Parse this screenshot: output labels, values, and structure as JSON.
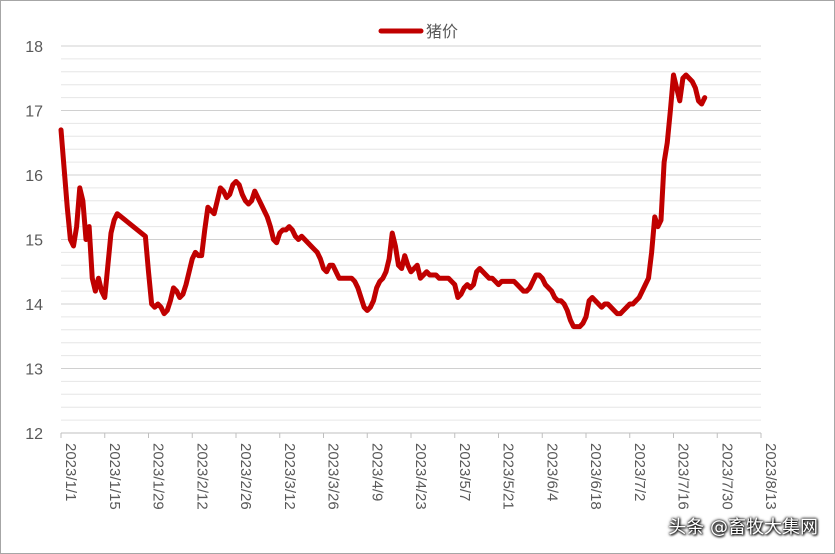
{
  "chart_data": {
    "type": "line",
    "title": "",
    "xlabel": "",
    "ylabel": "",
    "ylim": [
      12,
      18
    ],
    "yticks": [
      12,
      13,
      14,
      15,
      16,
      17,
      18
    ],
    "grid": "horizontal",
    "legend": {
      "position": "top-center",
      "entries": [
        "猪价"
      ]
    },
    "x_tick_labels": [
      "2023/1/1",
      "2023/1/15",
      "2023/1/29",
      "2023/2/12",
      "2023/2/26",
      "2023/3/12",
      "2023/3/26",
      "2023/4/9",
      "2023/4/23",
      "2023/5/7",
      "2023/5/21",
      "2023/6/4",
      "2023/6/18",
      "2023/7/2",
      "2023/7/16",
      "2023/7/30",
      "2023/8/13"
    ],
    "series": [
      {
        "name": "猪价",
        "color": "#c00000",
        "points": [
          [
            "2023-01-01",
            16.7
          ],
          [
            "2023-01-02",
            16.1
          ],
          [
            "2023-01-03",
            15.5
          ],
          [
            "2023-01-04",
            15.0
          ],
          [
            "2023-01-05",
            14.9
          ],
          [
            "2023-01-06",
            15.2
          ],
          [
            "2023-01-07",
            15.8
          ],
          [
            "2023-01-08",
            15.6
          ],
          [
            "2023-01-09",
            15.0
          ],
          [
            "2023-01-10",
            15.2
          ],
          [
            "2023-01-11",
            14.4
          ],
          [
            "2023-01-12",
            14.2
          ],
          [
            "2023-01-13",
            14.4
          ],
          [
            "2023-01-14",
            14.2
          ],
          [
            "2023-01-15",
            14.1
          ],
          [
            "2023-01-16",
            14.6
          ],
          [
            "2023-01-17",
            15.1
          ],
          [
            "2023-01-18",
            15.3
          ],
          [
            "2023-01-19",
            15.4
          ],
          [
            "2023-01-28",
            15.05
          ],
          [
            "2023-01-29",
            14.5
          ],
          [
            "2023-01-30",
            14.0
          ],
          [
            "2023-01-31",
            13.95
          ],
          [
            "2023-02-01",
            14.0
          ],
          [
            "2023-02-02",
            13.95
          ],
          [
            "2023-02-03",
            13.85
          ],
          [
            "2023-02-04",
            13.9
          ],
          [
            "2023-02-05",
            14.05
          ],
          [
            "2023-02-06",
            14.25
          ],
          [
            "2023-02-07",
            14.2
          ],
          [
            "2023-02-08",
            14.1
          ],
          [
            "2023-02-09",
            14.15
          ],
          [
            "2023-02-10",
            14.3
          ],
          [
            "2023-02-11",
            14.5
          ],
          [
            "2023-02-12",
            14.7
          ],
          [
            "2023-02-13",
            14.8
          ],
          [
            "2023-02-14",
            14.75
          ],
          [
            "2023-02-15",
            14.75
          ],
          [
            "2023-02-16",
            15.15
          ],
          [
            "2023-02-17",
            15.5
          ],
          [
            "2023-02-18",
            15.45
          ],
          [
            "2023-02-19",
            15.4
          ],
          [
            "2023-02-20",
            15.6
          ],
          [
            "2023-02-21",
            15.8
          ],
          [
            "2023-02-22",
            15.75
          ],
          [
            "2023-02-23",
            15.65
          ],
          [
            "2023-02-24",
            15.7
          ],
          [
            "2023-02-25",
            15.85
          ],
          [
            "2023-02-26",
            15.9
          ],
          [
            "2023-02-27",
            15.85
          ],
          [
            "2023-02-28",
            15.7
          ],
          [
            "2023-03-01",
            15.6
          ],
          [
            "2023-03-02",
            15.55
          ],
          [
            "2023-03-03",
            15.6
          ],
          [
            "2023-03-04",
            15.75
          ],
          [
            "2023-03-05",
            15.65
          ],
          [
            "2023-03-06",
            15.55
          ],
          [
            "2023-03-07",
            15.45
          ],
          [
            "2023-03-08",
            15.35
          ],
          [
            "2023-03-09",
            15.2
          ],
          [
            "2023-03-10",
            15.0
          ],
          [
            "2023-03-11",
            14.95
          ],
          [
            "2023-03-12",
            15.1
          ],
          [
            "2023-03-13",
            15.15
          ],
          [
            "2023-03-14",
            15.15
          ],
          [
            "2023-03-15",
            15.2
          ],
          [
            "2023-03-16",
            15.15
          ],
          [
            "2023-03-17",
            15.05
          ],
          [
            "2023-03-18",
            15.0
          ],
          [
            "2023-03-19",
            15.05
          ],
          [
            "2023-03-20",
            15.0
          ],
          [
            "2023-03-21",
            14.95
          ],
          [
            "2023-03-22",
            14.9
          ],
          [
            "2023-03-23",
            14.85
          ],
          [
            "2023-03-24",
            14.8
          ],
          [
            "2023-03-25",
            14.7
          ],
          [
            "2023-03-26",
            14.55
          ],
          [
            "2023-03-27",
            14.5
          ],
          [
            "2023-03-28",
            14.6
          ],
          [
            "2023-03-29",
            14.6
          ],
          [
            "2023-03-30",
            14.5
          ],
          [
            "2023-03-31",
            14.4
          ],
          [
            "2023-04-01",
            14.4
          ],
          [
            "2023-04-02",
            14.4
          ],
          [
            "2023-04-03",
            14.4
          ],
          [
            "2023-04-04",
            14.4
          ],
          [
            "2023-04-05",
            14.35
          ],
          [
            "2023-04-06",
            14.25
          ],
          [
            "2023-04-07",
            14.1
          ],
          [
            "2023-04-08",
            13.95
          ],
          [
            "2023-04-09",
            13.9
          ],
          [
            "2023-04-10",
            13.95
          ],
          [
            "2023-04-11",
            14.05
          ],
          [
            "2023-04-12",
            14.25
          ],
          [
            "2023-04-13",
            14.35
          ],
          [
            "2023-04-14",
            14.4
          ],
          [
            "2023-04-15",
            14.5
          ],
          [
            "2023-04-16",
            14.7
          ],
          [
            "2023-04-17",
            15.1
          ],
          [
            "2023-04-18",
            14.9
          ],
          [
            "2023-04-19",
            14.6
          ],
          [
            "2023-04-20",
            14.55
          ],
          [
            "2023-04-21",
            14.75
          ],
          [
            "2023-04-22",
            14.6
          ],
          [
            "2023-04-23",
            14.5
          ],
          [
            "2023-04-24",
            14.55
          ],
          [
            "2023-04-25",
            14.6
          ],
          [
            "2023-04-26",
            14.4
          ],
          [
            "2023-04-27",
            14.45
          ],
          [
            "2023-04-28",
            14.5
          ],
          [
            "2023-04-29",
            14.45
          ],
          [
            "2023-04-30",
            14.45
          ],
          [
            "2023-05-01",
            14.45
          ],
          [
            "2023-05-02",
            14.4
          ],
          [
            "2023-05-03",
            14.4
          ],
          [
            "2023-05-04",
            14.4
          ],
          [
            "2023-05-05",
            14.4
          ],
          [
            "2023-05-06",
            14.35
          ],
          [
            "2023-05-07",
            14.3
          ],
          [
            "2023-05-08",
            14.1
          ],
          [
            "2023-05-09",
            14.15
          ],
          [
            "2023-05-10",
            14.25
          ],
          [
            "2023-05-11",
            14.3
          ],
          [
            "2023-05-12",
            14.25
          ],
          [
            "2023-05-13",
            14.3
          ],
          [
            "2023-05-14",
            14.5
          ],
          [
            "2023-05-15",
            14.55
          ],
          [
            "2023-05-16",
            14.5
          ],
          [
            "2023-05-17",
            14.45
          ],
          [
            "2023-05-18",
            14.4
          ],
          [
            "2023-05-19",
            14.4
          ],
          [
            "2023-05-20",
            14.35
          ],
          [
            "2023-05-21",
            14.3
          ],
          [
            "2023-05-22",
            14.35
          ],
          [
            "2023-05-23",
            14.35
          ],
          [
            "2023-05-24",
            14.35
          ],
          [
            "2023-05-25",
            14.35
          ],
          [
            "2023-05-26",
            14.35
          ],
          [
            "2023-05-27",
            14.3
          ],
          [
            "2023-05-28",
            14.25
          ],
          [
            "2023-05-29",
            14.2
          ],
          [
            "2023-05-30",
            14.2
          ],
          [
            "2023-05-31",
            14.25
          ],
          [
            "2023-06-01",
            14.35
          ],
          [
            "2023-06-02",
            14.45
          ],
          [
            "2023-06-03",
            14.45
          ],
          [
            "2023-06-04",
            14.4
          ],
          [
            "2023-06-05",
            14.3
          ],
          [
            "2023-06-06",
            14.25
          ],
          [
            "2023-06-07",
            14.2
          ],
          [
            "2023-06-08",
            14.1
          ],
          [
            "2023-06-09",
            14.05
          ],
          [
            "2023-06-10",
            14.05
          ],
          [
            "2023-06-11",
            14.0
          ],
          [
            "2023-06-12",
            13.9
          ],
          [
            "2023-06-13",
            13.75
          ],
          [
            "2023-06-14",
            13.65
          ],
          [
            "2023-06-15",
            13.65
          ],
          [
            "2023-06-16",
            13.65
          ],
          [
            "2023-06-17",
            13.7
          ],
          [
            "2023-06-18",
            13.8
          ],
          [
            "2023-06-19",
            14.05
          ],
          [
            "2023-06-20",
            14.1
          ],
          [
            "2023-06-21",
            14.05
          ],
          [
            "2023-06-22",
            14.0
          ],
          [
            "2023-06-23",
            13.95
          ],
          [
            "2023-06-24",
            14.0
          ],
          [
            "2023-06-25",
            14.0
          ],
          [
            "2023-06-26",
            13.95
          ],
          [
            "2023-06-27",
            13.9
          ],
          [
            "2023-06-28",
            13.85
          ],
          [
            "2023-06-29",
            13.85
          ],
          [
            "2023-06-30",
            13.9
          ],
          [
            "2023-07-01",
            13.95
          ],
          [
            "2023-07-02",
            14.0
          ],
          [
            "2023-07-03",
            14.0
          ],
          [
            "2023-07-04",
            14.05
          ],
          [
            "2023-07-05",
            14.1
          ],
          [
            "2023-07-06",
            14.2
          ],
          [
            "2023-07-07",
            14.3
          ],
          [
            "2023-07-08",
            14.4
          ],
          [
            "2023-07-09",
            14.8
          ],
          [
            "2023-07-10",
            15.35
          ],
          [
            "2023-07-11",
            15.2
          ],
          [
            "2023-07-12",
            15.3
          ],
          [
            "2023-07-13",
            16.2
          ],
          [
            "2023-07-14",
            16.5
          ],
          [
            "2023-07-15",
            17.0
          ],
          [
            "2023-07-16",
            17.55
          ],
          [
            "2023-07-17",
            17.35
          ],
          [
            "2023-07-18",
            17.15
          ],
          [
            "2023-07-19",
            17.5
          ],
          [
            "2023-07-20",
            17.55
          ],
          [
            "2023-07-21",
            17.5
          ],
          [
            "2023-07-22",
            17.45
          ],
          [
            "2023-07-23",
            17.35
          ],
          [
            "2023-07-24",
            17.15
          ],
          [
            "2023-07-25",
            17.1
          ],
          [
            "2023-07-26",
            17.2
          ]
        ]
      }
    ]
  },
  "watermark": "头条 @畜牧大集网"
}
